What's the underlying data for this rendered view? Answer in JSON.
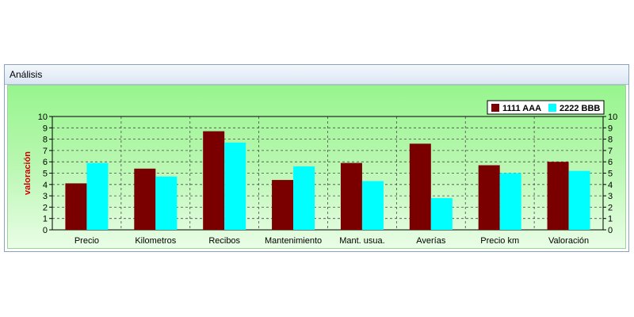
{
  "window": {
    "title": "Análisis"
  },
  "colors": {
    "series1": "#7a0000",
    "series2": "#00ffff",
    "panel_top": "#97f58e",
    "ylabel": "#cc0000"
  },
  "chart_data": {
    "type": "bar",
    "ylabel": "valoración",
    "ylim": [
      0,
      10
    ],
    "ticks": [
      "0",
      "1",
      "2",
      "3",
      "4",
      "5",
      "6",
      "7",
      "8",
      "9",
      "10"
    ],
    "grid": true,
    "legend_position": "top-right",
    "categories": [
      "Precio",
      "Kilometros",
      "Recibos",
      "Mantenimiento",
      "Mant. usua.",
      "Averías",
      "Precio km",
      "Valoración"
    ],
    "series": [
      {
        "name": "1111 AAA",
        "values": [
          4.1,
          5.4,
          8.7,
          4.4,
          5.9,
          7.6,
          5.7,
          6.0
        ]
      },
      {
        "name": "2222 BBB",
        "values": [
          5.9,
          4.7,
          7.7,
          5.6,
          4.3,
          2.8,
          5.0,
          5.2
        ]
      }
    ]
  }
}
